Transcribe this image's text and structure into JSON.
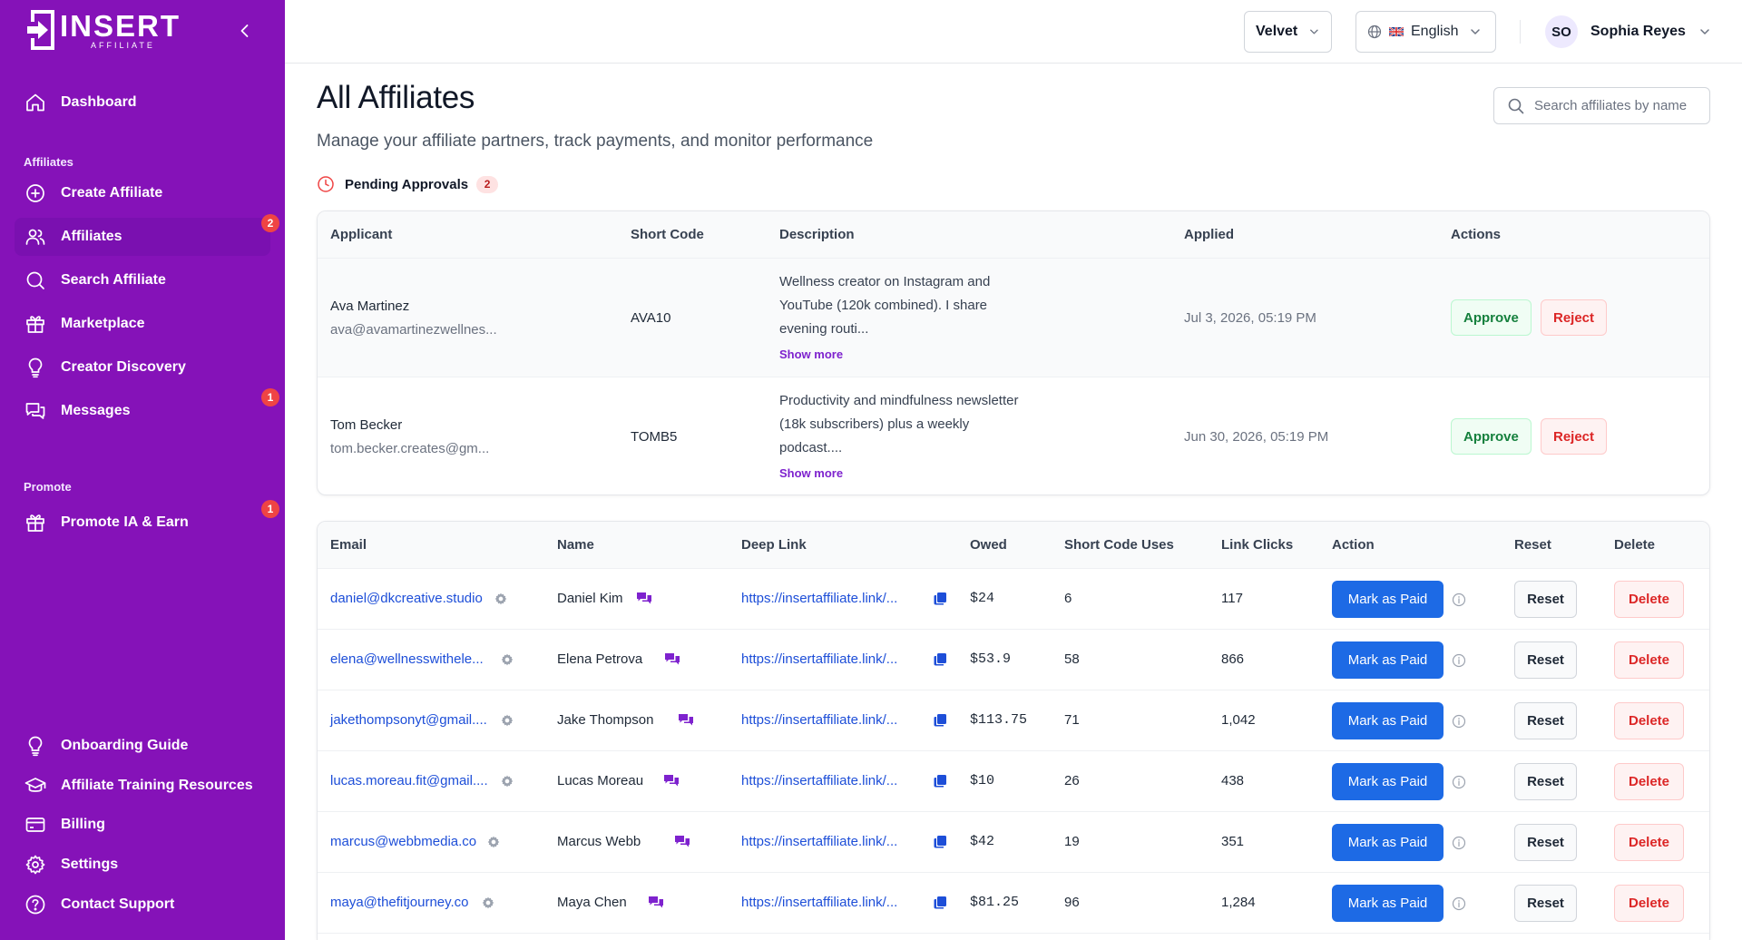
{
  "brand": {
    "logo_main": "INSERT",
    "logo_sub": "AFFILIATE"
  },
  "colors": {
    "sidebar": "#8512b8",
    "primary_button": "#1d6ae5",
    "danger": "#dc2626",
    "success": "#15803d",
    "badge": "#ef4444"
  },
  "sidebar": {
    "dashboard": {
      "label": "Dashboard",
      "icon": "home-icon"
    },
    "section_affiliates": "Affiliates",
    "create_affiliate": {
      "label": "Create Affiliate",
      "icon": "plus-circle-icon"
    },
    "affiliates": {
      "label": "Affiliates",
      "icon": "users-icon",
      "badge": "2"
    },
    "search_affiliate": {
      "label": "Search Affiliate",
      "icon": "search-icon"
    },
    "marketplace": {
      "label": "Marketplace",
      "icon": "gift-icon"
    },
    "creator_discovery": {
      "label": "Creator Discovery",
      "icon": "lightbulb-icon"
    },
    "messages": {
      "label": "Messages",
      "icon": "chat-icon",
      "badge": "1"
    },
    "section_promote": "Promote",
    "promote": {
      "label": "Promote IA & Earn",
      "icon": "gift-icon",
      "badge": "1"
    },
    "onboarding": {
      "label": "Onboarding Guide",
      "icon": "lightbulb-icon"
    },
    "training": {
      "label": "Affiliate Training Resources",
      "icon": "graduation-cap-icon"
    },
    "billing": {
      "label": "Billing",
      "icon": "credit-card-icon"
    },
    "settings": {
      "label": "Settings",
      "icon": "gear-icon"
    },
    "support": {
      "label": "Contact Support",
      "icon": "help-circle-icon"
    }
  },
  "topbar": {
    "store": "Velvet",
    "language": "English",
    "user_initials": "SO",
    "user_name": "Sophia Reyes"
  },
  "page": {
    "title": "All Affiliates",
    "subtitle": "Manage your affiliate partners, track payments, and monitor performance",
    "search_placeholder": "Search affiliates by name"
  },
  "pending": {
    "title": "Pending Approvals",
    "count": "2",
    "columns": {
      "applicant": "Applicant",
      "short_code": "Short Code",
      "description": "Description",
      "applied": "Applied",
      "actions": "Actions"
    },
    "approve_label": "Approve",
    "reject_label": "Reject",
    "show_more_label": "Show more",
    "rows": [
      {
        "name": "Ava Martinez",
        "email": "ava@avamartinezwellnes...",
        "code": "AVA10",
        "description": "Wellness creator on Instagram and YouTube (120k combined). I share evening routi...",
        "applied": "Jul 3, 2026, 05:19 PM"
      },
      {
        "name": "Tom Becker",
        "email": "tom.becker.creates@gm...",
        "code": "TOMB5",
        "description": "Productivity and mindfulness newsletter (18k subscribers) plus a weekly podcast....",
        "applied": "Jun 30, 2026, 05:19 PM"
      }
    ]
  },
  "affiliates": {
    "columns": {
      "email": "Email",
      "name": "Name",
      "deep_link": "Deep Link",
      "owed": "Owed",
      "uses": "Short Code Uses",
      "clicks": "Link Clicks",
      "action": "Action",
      "reset": "Reset",
      "delete": "Delete"
    },
    "mark_paid_label": "Mark as Paid",
    "reset_label": "Reset",
    "delete_label": "Delete",
    "rows": [
      {
        "email": "daniel@dkcreative.studio",
        "name": "Daniel Kim",
        "link": "https://insertaffiliate.link/...",
        "owed": "$24",
        "uses": "6",
        "clicks": "117"
      },
      {
        "email": "elena@wellnesswithele...",
        "name": "Elena Petrova",
        "link": "https://insertaffiliate.link/...",
        "owed": "$53.9",
        "uses": "58",
        "clicks": "866"
      },
      {
        "email": "jakethompsonyt@gmail....",
        "name": "Jake Thompson",
        "link": "https://insertaffiliate.link/...",
        "owed": "$113.75",
        "uses": "71",
        "clicks": "1,042"
      },
      {
        "email": "lucas.moreau.fit@gmail....",
        "name": "Lucas Moreau",
        "link": "https://insertaffiliate.link/...",
        "owed": "$10",
        "uses": "26",
        "clicks": "438"
      },
      {
        "email": "marcus@webbmedia.co",
        "name": "Marcus Webb",
        "link": "https://insertaffiliate.link/...",
        "owed": "$42",
        "uses": "19",
        "clicks": "351"
      },
      {
        "email": "maya@thefitjourney.co",
        "name": "Maya Chen",
        "link": "https://insertaffiliate.link/...",
        "owed": "$81.25",
        "uses": "96",
        "clicks": "1,284"
      }
    ]
  }
}
